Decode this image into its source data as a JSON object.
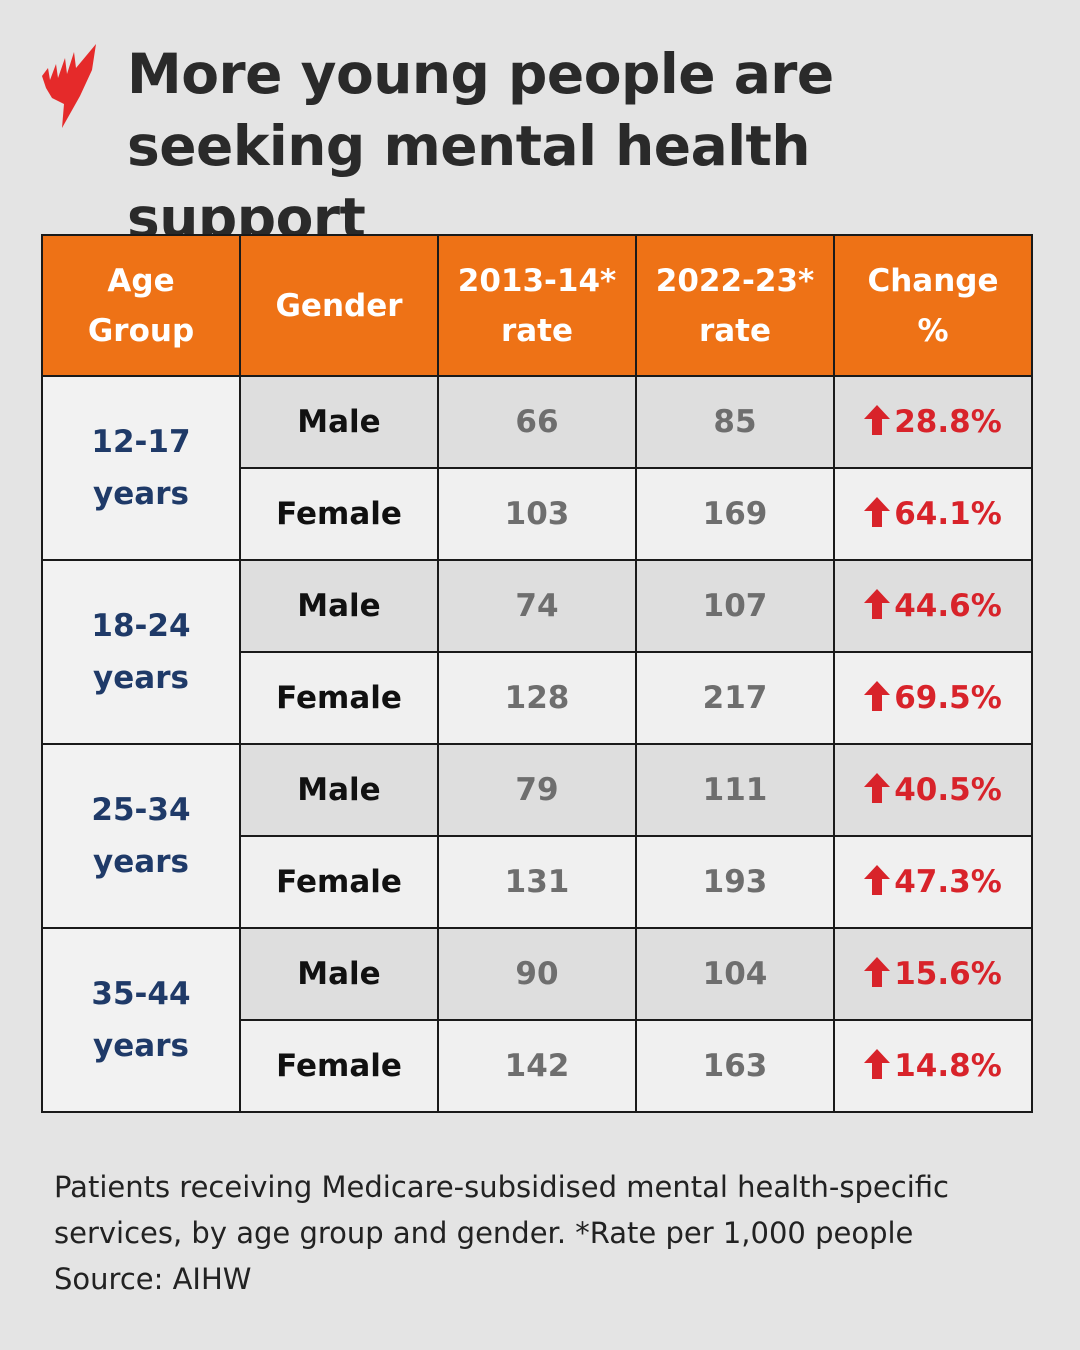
{
  "title": "More young people are seeking mental health support",
  "logo": "SBS",
  "colors": {
    "header": "#ee7216",
    "increase": "#d8232a",
    "age_text": "#1f3a68",
    "logo": "#e52a2a"
  },
  "chart_data": {
    "type": "table",
    "columns": [
      {
        "line1": "Age",
        "line2": "Group"
      },
      {
        "line1": "Gender",
        "line2": ""
      },
      {
        "line1": "2013-14*",
        "line2": "rate"
      },
      {
        "line1": "2022-23*",
        "line2": "rate"
      },
      {
        "line1": "Change",
        "line2": "%"
      }
    ],
    "groups": [
      {
        "age": "12-17",
        "unit": "years",
        "rows": [
          {
            "gender": "Male",
            "rate_2013_14": 66,
            "rate_2022_23": 85,
            "change": "28.8%"
          },
          {
            "gender": "Female",
            "rate_2013_14": 103,
            "rate_2022_23": 169,
            "change": "64.1%"
          }
        ]
      },
      {
        "age": "18-24",
        "unit": "years",
        "rows": [
          {
            "gender": "Male",
            "rate_2013_14": 74,
            "rate_2022_23": 107,
            "change": "44.6%"
          },
          {
            "gender": "Female",
            "rate_2013_14": 128,
            "rate_2022_23": 217,
            "change": "69.5%"
          }
        ]
      },
      {
        "age": "25-34",
        "unit": "years",
        "rows": [
          {
            "gender": "Male",
            "rate_2013_14": 79,
            "rate_2022_23": 111,
            "change": "40.5%"
          },
          {
            "gender": "Female",
            "rate_2013_14": 131,
            "rate_2022_23": 193,
            "change": "47.3%"
          }
        ]
      },
      {
        "age": "35-44",
        "unit": "years",
        "rows": [
          {
            "gender": "Male",
            "rate_2013_14": 90,
            "rate_2022_23": 104,
            "change": "15.6%"
          },
          {
            "gender": "Female",
            "rate_2013_14": 142,
            "rate_2022_23": 163,
            "change": "14.8%"
          }
        ]
      }
    ],
    "change_icon": "arrow-up-icon"
  },
  "caption": {
    "line1": "Patients receiving Medicare-subsidised mental health-specific",
    "line2": "services, by age group and gender. *Rate per 1,000 people",
    "source": "Source: AIHW"
  }
}
